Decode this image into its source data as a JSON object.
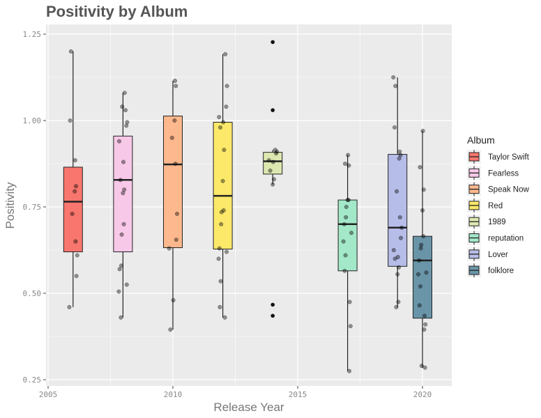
{
  "chart_data": {
    "type": "box",
    "title": "Positivity by Album",
    "xlabel": "Release Year",
    "ylabel": "Positivity",
    "xlim": [
      2005,
      2021
    ],
    "ylim": [
      0.25,
      1.25
    ],
    "x_ticks": [
      2005,
      2010,
      2015,
      2020
    ],
    "y_ticks": [
      0.25,
      0.5,
      0.75,
      1.0,
      1.25
    ],
    "x_tick_labels": [
      "2005",
      "2010",
      "2015",
      "2020"
    ],
    "y_tick_labels": [
      "0.25",
      "0.50",
      "0.75",
      "1.00",
      "1.25"
    ],
    "grid": true,
    "legend": {
      "title": "Album",
      "position": "right"
    },
    "series": [
      {
        "name": "Taylor Swift",
        "year": 2006,
        "color": "#F8766D",
        "box": {
          "min": 0.46,
          "q1": 0.62,
          "median": 0.765,
          "q3": 0.865,
          "max": 1.2
        },
        "outliers": [],
        "points": [
          0.46,
          0.55,
          0.61,
          0.65,
          0.73,
          0.795,
          0.81,
          0.885,
          1.0,
          1.2
        ]
      },
      {
        "name": "Fearless",
        "year": 2008,
        "color": "#F8C8E8",
        "box": {
          "min": 0.43,
          "q1": 0.62,
          "median": 0.828,
          "q3": 0.955,
          "max": 1.08
        },
        "outliers": [],
        "points": [
          0.43,
          0.505,
          0.525,
          0.57,
          0.58,
          0.67,
          0.7,
          0.79,
          0.8,
          0.828,
          0.88,
          0.94,
          0.985,
          0.995,
          1.03,
          1.04,
          1.08
        ]
      },
      {
        "name": "Speak Now",
        "year": 2010,
        "color": "#FDB88D",
        "box": {
          "min": 0.395,
          "q1": 0.632,
          "median": 0.873,
          "q3": 1.013,
          "max": 1.115
        },
        "outliers": [],
        "points": [
          0.395,
          0.48,
          0.63,
          0.655,
          0.73,
          0.875,
          0.95,
          1.0,
          1.1,
          1.115
        ]
      },
      {
        "name": "Red",
        "year": 2012,
        "color": "#FCE96A",
        "box": {
          "min": 0.43,
          "q1": 0.628,
          "median": 0.782,
          "q3": 0.995,
          "max": 1.192
        },
        "outliers": [],
        "points": [
          0.43,
          0.46,
          0.535,
          0.6,
          0.62,
          0.63,
          0.7,
          0.735,
          0.74,
          0.825,
          0.915,
          0.98,
          0.995,
          1.01,
          1.04,
          1.1,
          1.192
        ]
      },
      {
        "name": "1989",
        "year": 2014,
        "color": "#DCE8B0",
        "box": {
          "min": 0.815,
          "q1": 0.845,
          "median": 0.882,
          "q3": 0.908,
          "max": 0.915
        },
        "outliers": [
          0.435,
          0.467,
          1.03,
          1.227
        ],
        "points": [
          0.815,
          0.83,
          0.855,
          0.88,
          0.885,
          0.905,
          0.91,
          0.915
        ]
      },
      {
        "name": "reputation",
        "year": 2017,
        "color": "#A3E8C8",
        "box": {
          "min": 0.275,
          "q1": 0.565,
          "median": 0.7,
          "q3": 0.77,
          "max": 0.9
        },
        "outliers": [],
        "points": [
          0.275,
          0.405,
          0.475,
          0.565,
          0.61,
          0.65,
          0.675,
          0.7,
          0.72,
          0.75,
          0.77,
          0.77,
          0.87,
          0.875,
          0.9
        ]
      },
      {
        "name": "Lover",
        "year": 2019,
        "color": "#B6BDE8",
        "box": {
          "min": 0.46,
          "q1": 0.578,
          "median": 0.69,
          "q3": 0.902,
          "max": 1.125
        },
        "outliers": [],
        "points": [
          0.46,
          0.475,
          0.555,
          0.575,
          0.6,
          0.605,
          0.625,
          0.66,
          0.69,
          0.72,
          0.795,
          0.89,
          0.9,
          0.91,
          0.98,
          1.1,
          1.125
        ]
      },
      {
        "name": "folklore",
        "year": 2020,
        "color": "#6A95A8",
        "box": {
          "min": 0.285,
          "q1": 0.428,
          "median": 0.595,
          "q3": 0.665,
          "max": 0.97
        },
        "outliers": [],
        "points": [
          0.285,
          0.29,
          0.395,
          0.41,
          0.435,
          0.465,
          0.52,
          0.555,
          0.56,
          0.595,
          0.63,
          0.64,
          0.665,
          0.74,
          0.8,
          0.865,
          0.97
        ]
      }
    ]
  }
}
